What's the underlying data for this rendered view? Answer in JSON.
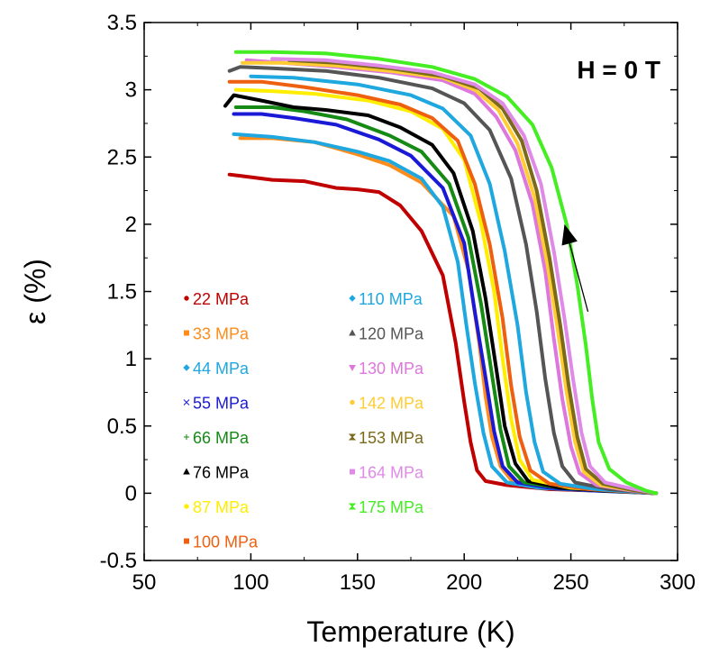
{
  "chart_data": {
    "type": "line",
    "xlabel": "Temperature (K)",
    "ylabel": "ε (%)",
    "xlim": [
      50,
      300
    ],
    "ylim": [
      -0.5,
      3.5
    ],
    "xticks": [
      50,
      100,
      150,
      200,
      250,
      300
    ],
    "yticks": [
      -0.5,
      0,
      0.5,
      1,
      1.5,
      2,
      2.5,
      3,
      3.5
    ],
    "ytick_labels": [
      "-0.5",
      "0",
      "0.5",
      "1",
      "1.5",
      "2",
      "2.5",
      "3",
      "3.5"
    ],
    "grid": false,
    "annotation": "H = 0 T",
    "arrow": {
      "from": [
        258,
        1.35
      ],
      "to": [
        247,
        2.0
      ],
      "direction": "up"
    },
    "legend_columns": 2,
    "legend_placement": "bottom-left",
    "series": [
      {
        "name": "22 MPa",
        "color": "#c00000",
        "marker": "circle",
        "points": [
          [
            90,
            2.37
          ],
          [
            95,
            2.36
          ],
          [
            110,
            2.33
          ],
          [
            125,
            2.32
          ],
          [
            140,
            2.27
          ],
          [
            150,
            2.26
          ],
          [
            160,
            2.24
          ],
          [
            170,
            2.14
          ],
          [
            180,
            1.95
          ],
          [
            190,
            1.62
          ],
          [
            196,
            1.12
          ],
          [
            200,
            0.68
          ],
          [
            203,
            0.38
          ],
          [
            206,
            0.17
          ],
          [
            210,
            0.09
          ],
          [
            220,
            0.06
          ],
          [
            240,
            0.03
          ],
          [
            260,
            0.02
          ],
          [
            280,
            0.01
          ],
          [
            290,
            0.0
          ]
        ]
      },
      {
        "name": "33 MPa",
        "color": "#ff8c1a",
        "marker": "square",
        "points": [
          [
            95,
            2.64
          ],
          [
            110,
            2.64
          ],
          [
            130,
            2.61
          ],
          [
            150,
            2.52
          ],
          [
            165,
            2.44
          ],
          [
            180,
            2.31
          ],
          [
            195,
            2.06
          ],
          [
            202,
            1.66
          ],
          [
            207,
            1.12
          ],
          [
            210,
            0.72
          ],
          [
            213,
            0.42
          ],
          [
            217,
            0.2
          ],
          [
            222,
            0.1
          ],
          [
            235,
            0.05
          ],
          [
            250,
            0.03
          ],
          [
            270,
            0.02
          ],
          [
            290,
            0.0
          ]
        ]
      },
      {
        "name": "44 MPa",
        "color": "#1fa7e0",
        "marker": "diamond",
        "points": [
          [
            92,
            2.67
          ],
          [
            110,
            2.65
          ],
          [
            130,
            2.61
          ],
          [
            150,
            2.54
          ],
          [
            165,
            2.47
          ],
          [
            180,
            2.34
          ],
          [
            190,
            2.13
          ],
          [
            197,
            1.72
          ],
          [
            201,
            1.25
          ],
          [
            205,
            0.82
          ],
          [
            209,
            0.45
          ],
          [
            213,
            0.2
          ],
          [
            220,
            0.08
          ],
          [
            235,
            0.04
          ],
          [
            260,
            0.02
          ],
          [
            290,
            0.0
          ]
        ]
      },
      {
        "name": "55 MPa",
        "color": "#1a1ad6",
        "marker": "x",
        "points": [
          [
            92,
            2.82
          ],
          [
            105,
            2.82
          ],
          [
            120,
            2.79
          ],
          [
            140,
            2.74
          ],
          [
            160,
            2.63
          ],
          [
            175,
            2.51
          ],
          [
            190,
            2.27
          ],
          [
            200,
            1.86
          ],
          [
            205,
            1.35
          ],
          [
            210,
            0.86
          ],
          [
            214,
            0.46
          ],
          [
            218,
            0.2
          ],
          [
            225,
            0.08
          ],
          [
            240,
            0.04
          ],
          [
            260,
            0.02
          ],
          [
            290,
            0.0
          ]
        ]
      },
      {
        "name": "66 MPa",
        "color": "#158a15",
        "marker": "plus",
        "points": [
          [
            93,
            2.87
          ],
          [
            110,
            2.87
          ],
          [
            125,
            2.84
          ],
          [
            145,
            2.78
          ],
          [
            165,
            2.66
          ],
          [
            180,
            2.54
          ],
          [
            193,
            2.3
          ],
          [
            202,
            1.9
          ],
          [
            208,
            1.4
          ],
          [
            213,
            0.88
          ],
          [
            217,
            0.47
          ],
          [
            221,
            0.2
          ],
          [
            228,
            0.08
          ],
          [
            245,
            0.04
          ],
          [
            265,
            0.02
          ],
          [
            290,
            0.0
          ]
        ]
      },
      {
        "name": "76 MPa",
        "color": "#000000",
        "marker": "triangle",
        "points": [
          [
            88,
            2.88
          ],
          [
            92,
            2.96
          ],
          [
            105,
            2.92
          ],
          [
            120,
            2.87
          ],
          [
            135,
            2.85
          ],
          [
            155,
            2.81
          ],
          [
            170,
            2.72
          ],
          [
            185,
            2.59
          ],
          [
            195,
            2.38
          ],
          [
            204,
            1.95
          ],
          [
            210,
            1.45
          ],
          [
            215,
            0.93
          ],
          [
            219,
            0.5
          ],
          [
            224,
            0.22
          ],
          [
            230,
            0.09
          ],
          [
            245,
            0.04
          ],
          [
            265,
            0.02
          ],
          [
            290,
            0.0
          ]
        ]
      },
      {
        "name": "87 MPa",
        "color": "#ffee00",
        "marker": "circle",
        "points": [
          [
            93,
            3.0
          ],
          [
            110,
            2.99
          ],
          [
            130,
            2.97
          ],
          [
            155,
            2.92
          ],
          [
            175,
            2.84
          ],
          [
            190,
            2.71
          ],
          [
            200,
            2.48
          ],
          [
            208,
            2.0
          ],
          [
            214,
            1.5
          ],
          [
            218,
            1.0
          ],
          [
            222,
            0.55
          ],
          [
            226,
            0.25
          ],
          [
            232,
            0.1
          ],
          [
            250,
            0.04
          ],
          [
            270,
            0.02
          ],
          [
            290,
            0.0
          ]
        ]
      },
      {
        "name": "100 MPa",
        "color": "#ee6010",
        "marker": "square",
        "points": [
          [
            90,
            3.06
          ],
          [
            105,
            3.06
          ],
          [
            125,
            3.02
          ],
          [
            150,
            2.96
          ],
          [
            170,
            2.89
          ],
          [
            185,
            2.79
          ],
          [
            197,
            2.62
          ],
          [
            205,
            2.3
          ],
          [
            212,
            1.85
          ],
          [
            218,
            1.3
          ],
          [
            222,
            0.8
          ],
          [
            226,
            0.42
          ],
          [
            231,
            0.17
          ],
          [
            240,
            0.07
          ],
          [
            258,
            0.03
          ],
          [
            278,
            0.01
          ],
          [
            290,
            0.0
          ]
        ]
      },
      {
        "name": "110 MPa",
        "color": "#1fa7e0",
        "marker": "diamond",
        "points": [
          [
            100,
            3.1
          ],
          [
            120,
            3.09
          ],
          [
            150,
            3.04
          ],
          [
            175,
            2.96
          ],
          [
            190,
            2.86
          ],
          [
            203,
            2.66
          ],
          [
            212,
            2.3
          ],
          [
            219,
            1.8
          ],
          [
            225,
            1.25
          ],
          [
            229,
            0.75
          ],
          [
            233,
            0.38
          ],
          [
            237,
            0.16
          ],
          [
            245,
            0.07
          ],
          [
            262,
            0.03
          ],
          [
            280,
            0.01
          ],
          [
            290,
            0.0
          ]
        ]
      },
      {
        "name": "120 MPa",
        "color": "#555555",
        "marker": "triangle",
        "points": [
          [
            90,
            3.14
          ],
          [
            95,
            3.17
          ],
          [
            110,
            3.16
          ],
          [
            135,
            3.14
          ],
          [
            160,
            3.09
          ],
          [
            185,
            3.01
          ],
          [
            200,
            2.9
          ],
          [
            212,
            2.7
          ],
          [
            222,
            2.34
          ],
          [
            229,
            1.85
          ],
          [
            234,
            1.35
          ],
          [
            238,
            0.85
          ],
          [
            242,
            0.45
          ],
          [
            246,
            0.2
          ],
          [
            252,
            0.08
          ],
          [
            268,
            0.03
          ],
          [
            290,
            0.0
          ]
        ]
      },
      {
        "name": "130 MPa",
        "color": "#dd77dd",
        "marker": "triangle-down",
        "points": [
          [
            98,
            3.22
          ],
          [
            115,
            3.2
          ],
          [
            140,
            3.17
          ],
          [
            165,
            3.13
          ],
          [
            190,
            3.07
          ],
          [
            205,
            2.97
          ],
          [
            215,
            2.8
          ],
          [
            224,
            2.55
          ],
          [
            232,
            2.15
          ],
          [
            238,
            1.65
          ],
          [
            242,
            1.15
          ],
          [
            246,
            0.7
          ],
          [
            250,
            0.35
          ],
          [
            254,
            0.15
          ],
          [
            262,
            0.06
          ],
          [
            278,
            0.02
          ],
          [
            290,
            0.0
          ]
        ]
      },
      {
        "name": "142 MPa",
        "color": "#ffcc33",
        "marker": "circle",
        "points": [
          [
            96,
            3.2
          ],
          [
            115,
            3.2
          ],
          [
            140,
            3.18
          ],
          [
            165,
            3.14
          ],
          [
            190,
            3.09
          ],
          [
            205,
            3.0
          ],
          [
            216,
            2.85
          ],
          [
            225,
            2.6
          ],
          [
            233,
            2.2
          ],
          [
            239,
            1.7
          ],
          [
            244,
            1.2
          ],
          [
            248,
            0.75
          ],
          [
            252,
            0.38
          ],
          [
            256,
            0.16
          ],
          [
            264,
            0.06
          ],
          [
            280,
            0.02
          ],
          [
            290,
            0.0
          ]
        ]
      },
      {
        "name": "153 MPa",
        "color": "#7a6a1a",
        "marker": "hourglass",
        "points": [
          [
            118,
            3.22
          ],
          [
            140,
            3.2
          ],
          [
            165,
            3.16
          ],
          [
            190,
            3.1
          ],
          [
            207,
            3.01
          ],
          [
            218,
            2.86
          ],
          [
            227,
            2.62
          ],
          [
            234,
            2.25
          ],
          [
            240,
            1.75
          ],
          [
            245,
            1.25
          ],
          [
            249,
            0.8
          ],
          [
            253,
            0.42
          ],
          [
            257,
            0.18
          ],
          [
            265,
            0.07
          ],
          [
            280,
            0.02
          ],
          [
            290,
            0.0
          ]
        ]
      },
      {
        "name": "164 MPa",
        "color": "#e08ae8",
        "marker": "square",
        "points": [
          [
            110,
            3.23
          ],
          [
            135,
            3.22
          ],
          [
            160,
            3.18
          ],
          [
            185,
            3.13
          ],
          [
            205,
            3.04
          ],
          [
            218,
            2.9
          ],
          [
            228,
            2.66
          ],
          [
            236,
            2.3
          ],
          [
            242,
            1.8
          ],
          [
            247,
            1.3
          ],
          [
            251,
            0.85
          ],
          [
            255,
            0.45
          ],
          [
            259,
            0.2
          ],
          [
            266,
            0.08
          ],
          [
            280,
            0.03
          ],
          [
            290,
            0.0
          ]
        ]
      },
      {
        "name": "175 MPa",
        "color": "#44ee22",
        "marker": "hourglass",
        "points": [
          [
            93,
            3.28
          ],
          [
            110,
            3.28
          ],
          [
            135,
            3.27
          ],
          [
            160,
            3.23
          ],
          [
            185,
            3.17
          ],
          [
            205,
            3.08
          ],
          [
            220,
            2.95
          ],
          [
            232,
            2.74
          ],
          [
            241,
            2.42
          ],
          [
            248,
            2.0
          ],
          [
            253,
            1.55
          ],
          [
            257,
            1.1
          ],
          [
            260,
            0.7
          ],
          [
            263,
            0.38
          ],
          [
            268,
            0.18
          ],
          [
            276,
            0.08
          ],
          [
            285,
            0.02
          ],
          [
            290,
            0.0
          ]
        ]
      }
    ]
  }
}
